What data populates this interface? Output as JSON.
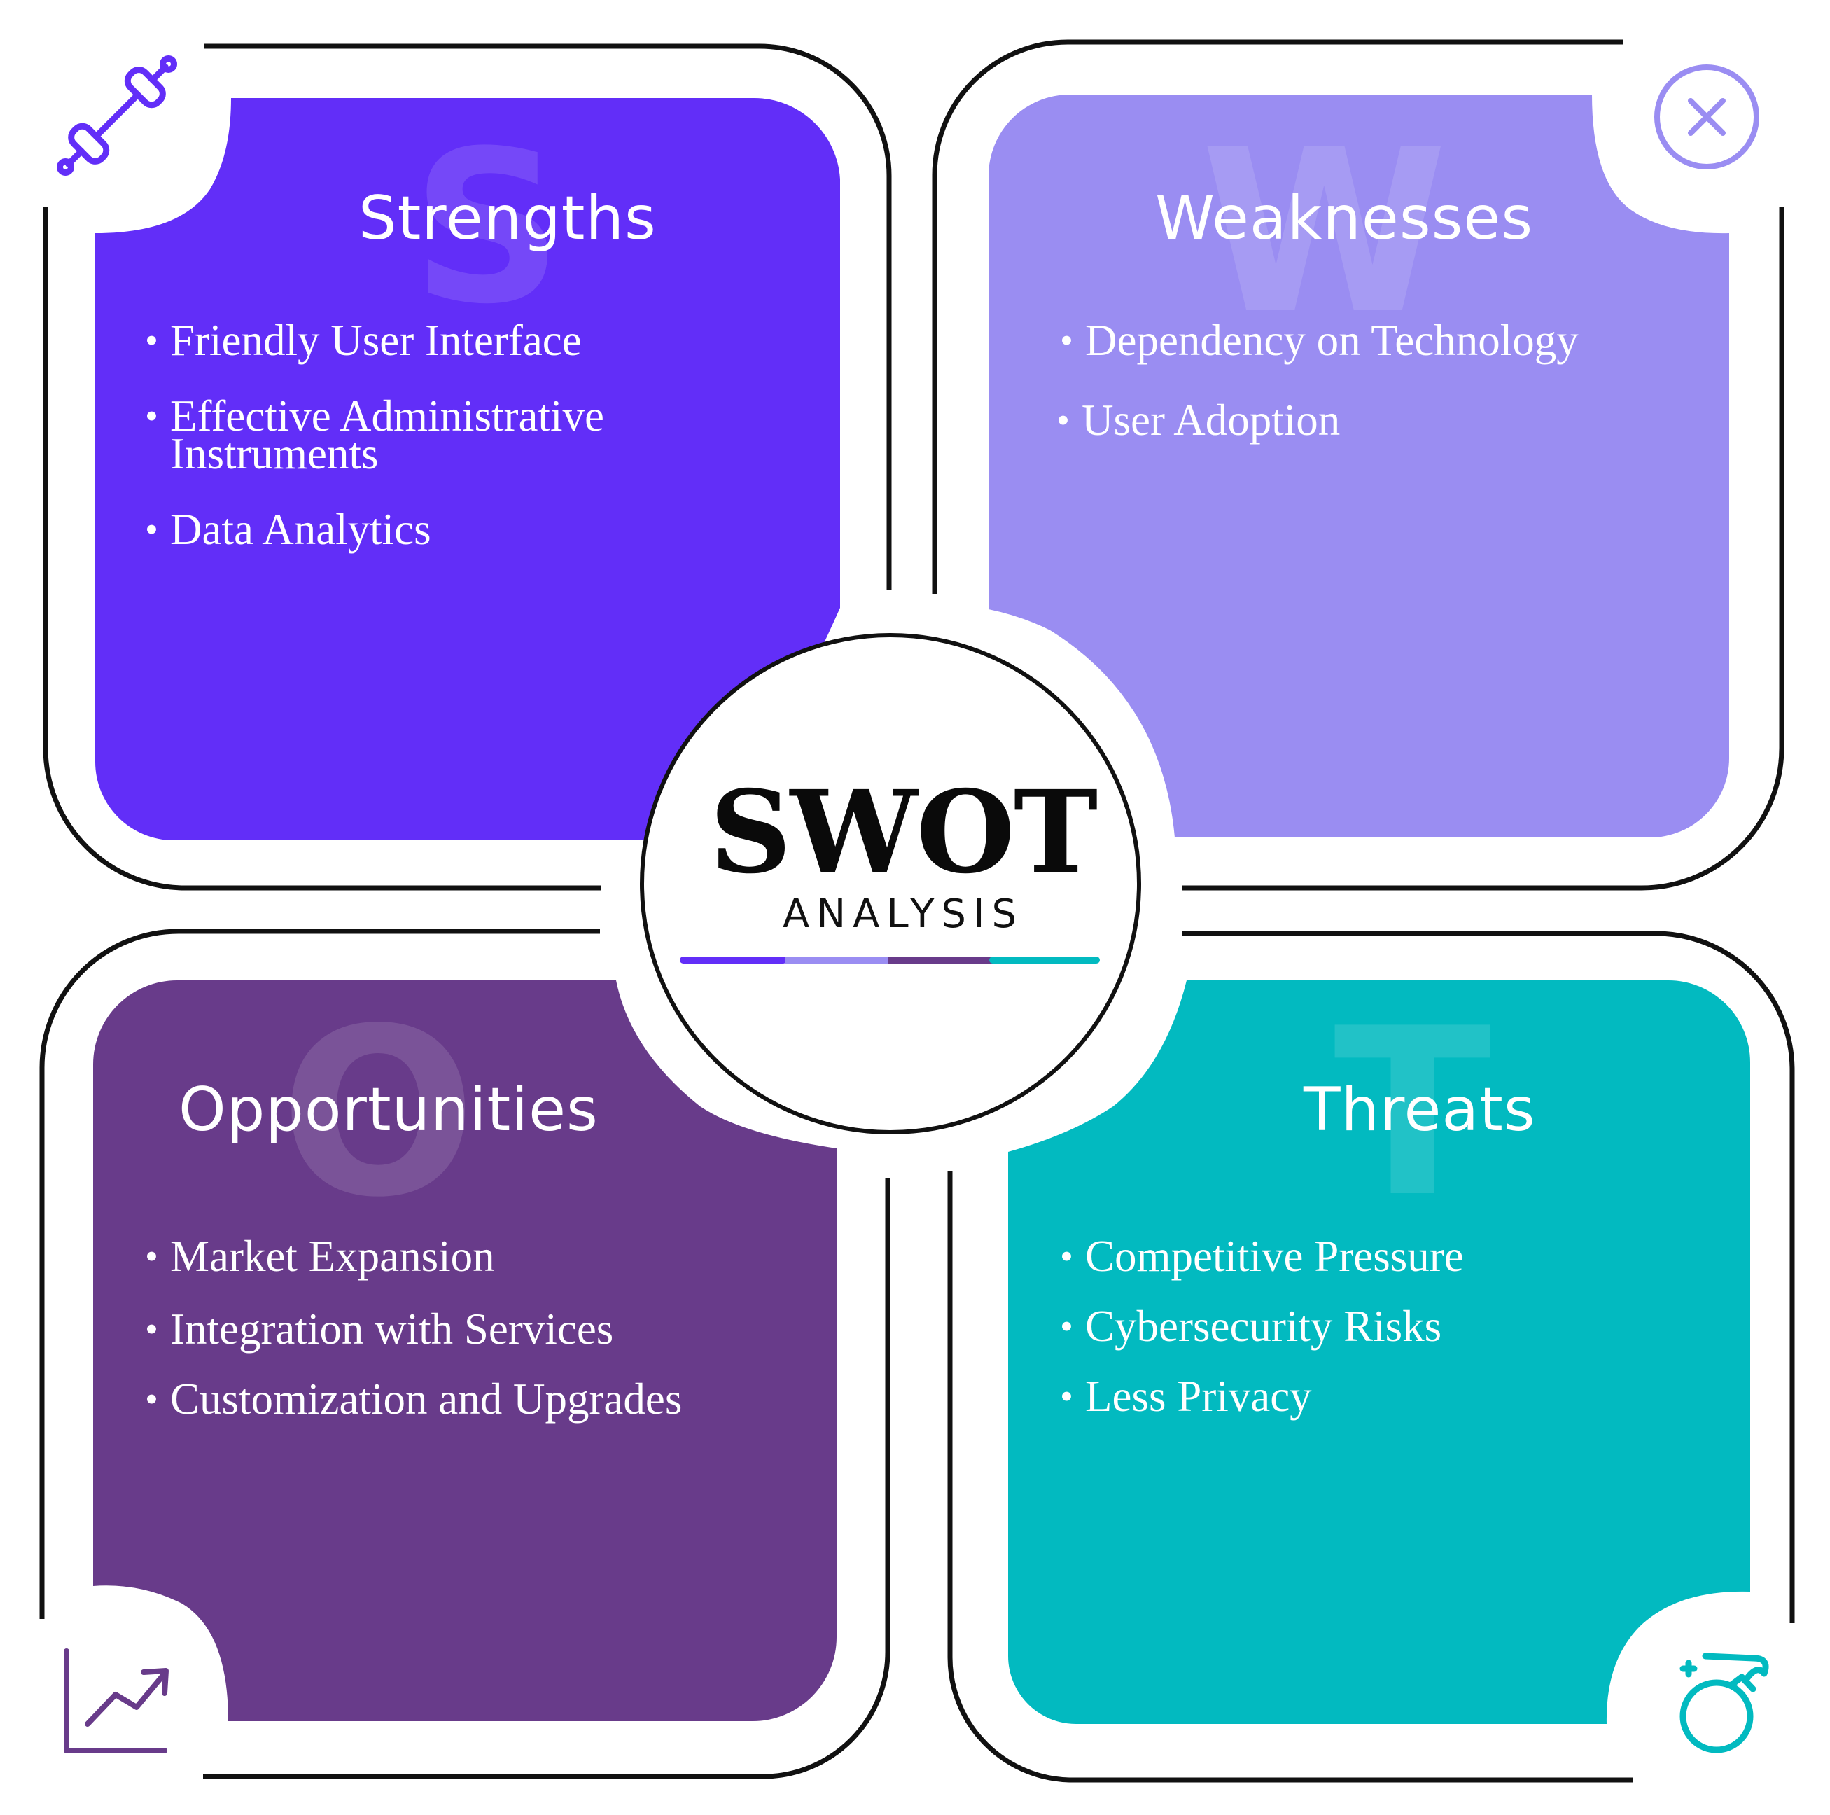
{
  "colors": {
    "strengths": "#622EF8",
    "weaknesses": "#9A8DF2",
    "opportunities": "#683B8A",
    "threats": "#02BAC0",
    "outline": "#111111"
  },
  "center": {
    "title": "SWOT",
    "subtitle": "ANALYSIS"
  },
  "quadrants": {
    "strengths": {
      "letter": "S",
      "title": "Strengths",
      "icon": "dumbbell-icon",
      "items": [
        "Friendly User Interface",
        "Effective Administrative Instruments",
        "Data Analytics"
      ]
    },
    "weaknesses": {
      "letter": "W",
      "title": "Weaknesses",
      "icon": "close-circle-icon",
      "items": [
        "Dependency on Technology",
        "User Adoption"
      ]
    },
    "opportunities": {
      "letter": "O",
      "title": "Opportunities",
      "icon": "trend-chart-icon",
      "items": [
        "Market Expansion",
        "Integration with Services",
        "Customization and Upgrades"
      ]
    },
    "threats": {
      "letter": "T",
      "title": "Threats",
      "icon": "bomb-icon",
      "items": [
        "Competitive Pressure",
        "Cybersecurity Risks",
        "Less Privacy"
      ]
    }
  }
}
